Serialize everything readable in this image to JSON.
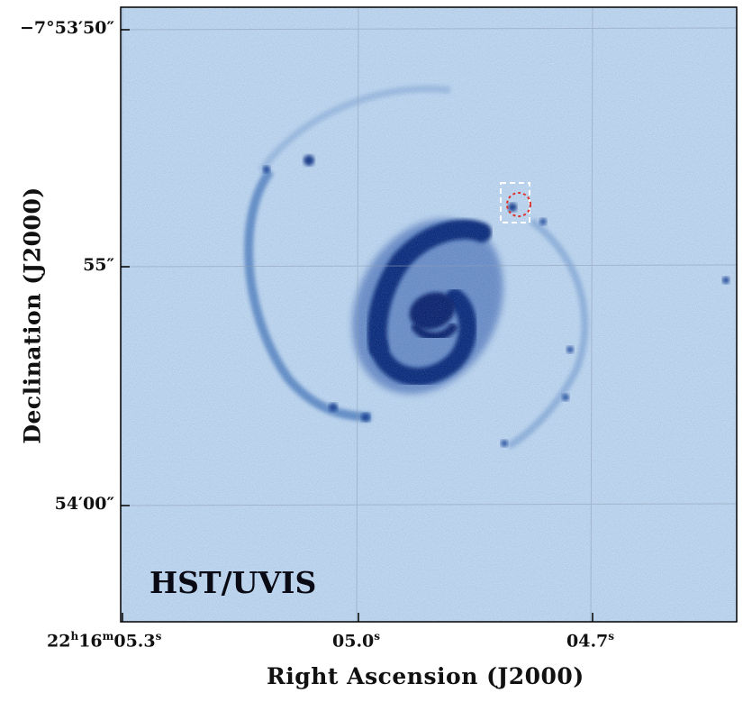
{
  "figure": {
    "panel_label": "HST/UVIS",
    "x_axis_title": "Right Ascension (J2000)",
    "y_axis_title": "Declination (J2000)",
    "ra_ticks": [
      {
        "h": "22",
        "h_unit": "h",
        "m": "16",
        "m_unit": "m",
        "s": "05.3",
        "s_unit": "s"
      },
      {
        "s": "05.0",
        "s_unit": "s"
      },
      {
        "s": "04.7",
        "s_unit": "s"
      }
    ],
    "dec_ticks": [
      "−7°53′50″",
      "55″",
      "54′00″"
    ],
    "colors": {
      "background_sky": "#a9c6e6",
      "galaxy_core": "#0c2a78",
      "marker_box": "#ffffff",
      "marker_circle": "#e0302a"
    }
  }
}
